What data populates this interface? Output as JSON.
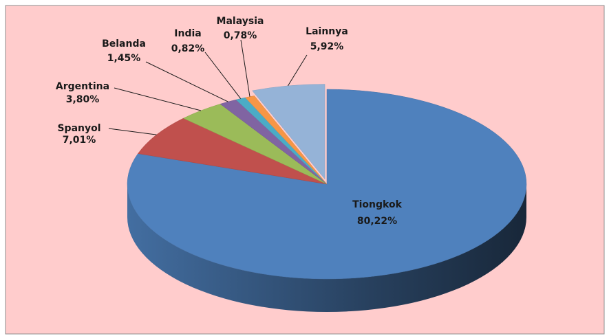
{
  "chart_data": {
    "type": "pie3d",
    "categories": [
      "Tiongkok",
      "Spanyol",
      "Argentina",
      "Belanda",
      "India",
      "Malaysia",
      "Lainnya"
    ],
    "values": [
      80.22,
      7.01,
      3.8,
      1.45,
      0.82,
      0.78,
      5.92
    ],
    "value_labels": [
      "80,22%",
      "7,01%",
      "3,80%",
      "1,45%",
      "0,82%",
      "0,78%",
      "5,92%"
    ],
    "colors": [
      "#4f81bd",
      "#c0504d",
      "#9bbb59",
      "#8064a2",
      "#4bacc6",
      "#f79646",
      "#95b3d7"
    ]
  }
}
